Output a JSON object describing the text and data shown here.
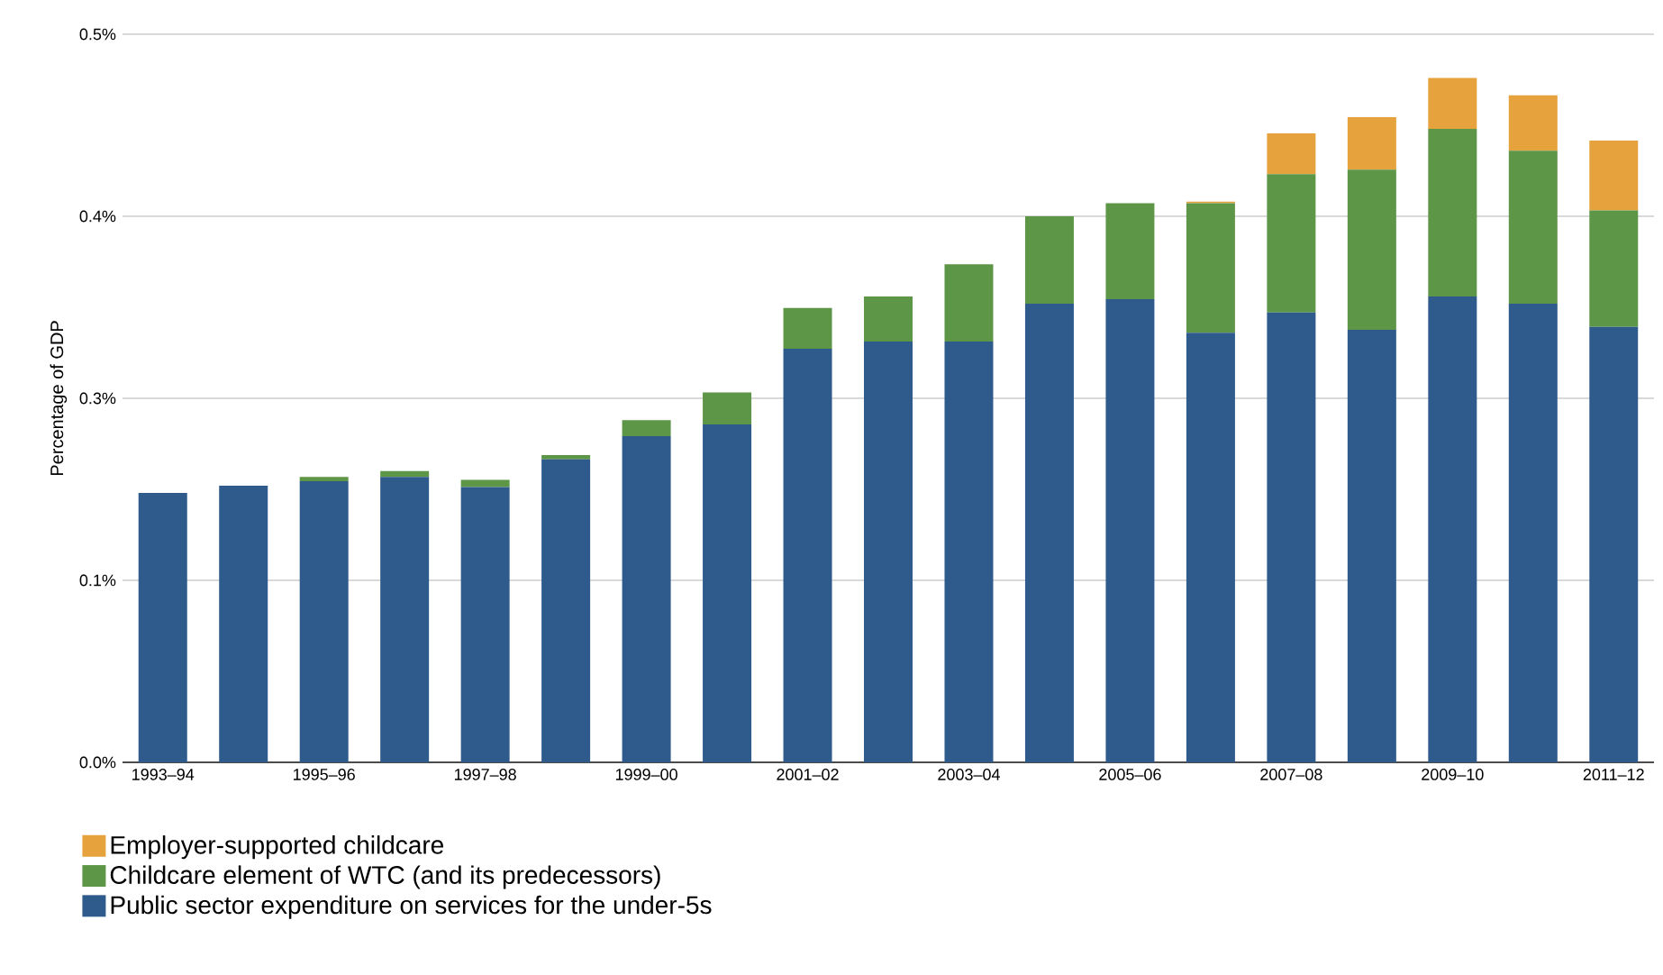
{
  "chart_data": {
    "type": "bar",
    "stacked": true,
    "ylabel": "Percentage of GDP",
    "categories": [
      "1993–94",
      null,
      "1995–96",
      null,
      "1997–98",
      null,
      "1999–00",
      null,
      "2001–02",
      null,
      "2003–04",
      null,
      "2005–06",
      null,
      "2007–08",
      null,
      "2009–10",
      null,
      "2011–12"
    ],
    "series": [
      {
        "name": "Public sector expenditure on services for the under-5s",
        "color": "#2e5a8c",
        "values": [
          0.185,
          0.19,
          0.193,
          0.196,
          0.189,
          0.208,
          0.224,
          0.232,
          0.284,
          0.289,
          0.289,
          0.315,
          0.318,
          0.295,
          0.309,
          0.297,
          0.32,
          0.315,
          0.299
        ]
      },
      {
        "name": "Childcare element of WTC (and its predecessors)",
        "color": "#5e9648",
        "values": [
          0,
          0,
          0.003,
          0.004,
          0.005,
          0.003,
          0.011,
          0.022,
          0.028,
          0.031,
          0.053,
          0.06,
          0.066,
          0.089,
          0.095,
          0.11,
          0.115,
          0.105,
          0.08
        ]
      },
      {
        "name": "Employer-supported childcare",
        "color": "#e6a23c",
        "values": [
          0,
          0,
          0,
          0,
          0,
          0,
          0,
          0,
          0,
          0,
          0,
          0,
          0,
          0.001,
          0.028,
          0.036,
          0.035,
          0.038,
          0.048
        ]
      }
    ],
    "ylim": [
      0,
      0.5
    ],
    "yticks": [
      {
        "value": 0,
        "label": "0.0%"
      },
      {
        "value": 0.125,
        "label": "0.1%"
      },
      {
        "value": 0.25,
        "label": "0.3%"
      },
      {
        "value": 0.375,
        "label": "0.4%"
      },
      {
        "value": 0.5,
        "label": "0.5%"
      }
    ],
    "grid": "y",
    "legend": "bottom"
  }
}
